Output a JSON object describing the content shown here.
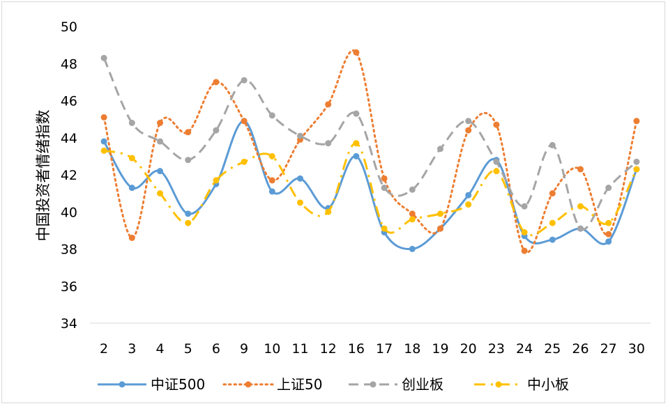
{
  "chart_data": {
    "type": "line",
    "title": "",
    "xlabel": "",
    "ylabel": "中国投资者情绪指数",
    "ylim": [
      34,
      50
    ],
    "yticks": [
      34,
      36,
      38,
      40,
      42,
      44,
      46,
      48,
      50
    ],
    "grid": false,
    "smooth": true,
    "legend_position": "bottom",
    "categories": [
      "2",
      "3",
      "4",
      "5",
      "6",
      "9",
      "10",
      "11",
      "12",
      "16",
      "17",
      "18",
      "19",
      "20",
      "23",
      "24",
      "25",
      "26",
      "27",
      "30"
    ],
    "series": [
      {
        "name": "中证500",
        "color": "#5B9BD5",
        "dash": "solid",
        "values": [
          43.8,
          41.3,
          42.2,
          39.9,
          41.5,
          44.9,
          41.1,
          41.8,
          40.2,
          43.0,
          38.9,
          38.0,
          39.1,
          40.9,
          42.8,
          38.7,
          38.5,
          39.1,
          38.4,
          42.3
        ]
      },
      {
        "name": "上证50",
        "color": "#ED7D31",
        "dash": "dot",
        "values": [
          45.1,
          38.6,
          44.8,
          44.3,
          47.0,
          44.9,
          41.7,
          43.9,
          45.8,
          48.6,
          41.8,
          39.9,
          39.1,
          44.4,
          44.7,
          37.9,
          41.0,
          42.3,
          38.8,
          44.9
        ]
      },
      {
        "name": "创业板",
        "color": "#A5A5A5",
        "dash": "dash",
        "values": [
          48.3,
          44.8,
          43.8,
          42.8,
          44.4,
          47.1,
          45.2,
          44.1,
          43.7,
          45.3,
          41.3,
          41.2,
          43.4,
          44.9,
          42.7,
          40.3,
          43.6,
          39.1,
          41.3,
          42.7
        ]
      },
      {
        "name": "中小板",
        "color": "#FFC000",
        "dash": "dashdot",
        "values": [
          43.3,
          42.9,
          41.0,
          39.4,
          41.7,
          42.7,
          43.0,
          40.5,
          40.0,
          43.7,
          39.1,
          39.6,
          39.9,
          40.4,
          42.2,
          38.9,
          39.4,
          40.3,
          39.4,
          42.3
        ]
      }
    ]
  }
}
